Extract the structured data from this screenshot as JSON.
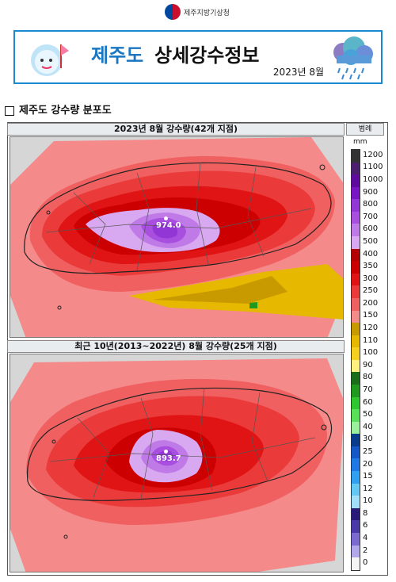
{
  "header": {
    "org_name": "제주지방기상청",
    "title_region": "제주도",
    "title_main": "상세강수정보",
    "date": "2023년 8월"
  },
  "section": {
    "title": "제주도 강수량 분포도"
  },
  "maps": [
    {
      "title": "2023년 8월 강수량(42개 지점)",
      "max_value": "974.0"
    },
    {
      "title": "최근 10년(2013~2022년) 8월 강수량(25개 지점)",
      "max_value": "893.7"
    }
  ],
  "legend": {
    "header": "범례",
    "unit": "mm",
    "levels": [
      {
        "label": "1200",
        "color": "#333333"
      },
      {
        "label": "1100",
        "color": "#4b1f6e"
      },
      {
        "label": "1000",
        "color": "#5e0a9e"
      },
      {
        "label": "900",
        "color": "#7a15c4"
      },
      {
        "label": "800",
        "color": "#9336d6"
      },
      {
        "label": "700",
        "color": "#a84fe0"
      },
      {
        "label": "600",
        "color": "#c07ae8"
      },
      {
        "label": "500",
        "color": "#d8a8f0"
      },
      {
        "label": "400",
        "color": "#b30000"
      },
      {
        "label": "350",
        "color": "#cc0000"
      },
      {
        "label": "300",
        "color": "#e01414"
      },
      {
        "label": "250",
        "color": "#ea3a3a"
      },
      {
        "label": "200",
        "color": "#f06060"
      },
      {
        "label": "150",
        "color": "#f58a8a"
      },
      {
        "label": "120",
        "color": "#c89a00"
      },
      {
        "label": "110",
        "color": "#e6b800"
      },
      {
        "label": "100",
        "color": "#f5d020"
      },
      {
        "label": "90",
        "color": "#fff080"
      },
      {
        "label": "80",
        "color": "#1a6e1a"
      },
      {
        "label": "70",
        "color": "#1f9a1f"
      },
      {
        "label": "60",
        "color": "#2ec82e"
      },
      {
        "label": "50",
        "color": "#58e058"
      },
      {
        "label": "40",
        "color": "#9cf09c"
      },
      {
        "label": "30",
        "color": "#0a3c8c"
      },
      {
        "label": "25",
        "color": "#1458c8"
      },
      {
        "label": "20",
        "color": "#1e78e6"
      },
      {
        "label": "15",
        "color": "#32a0f0"
      },
      {
        "label": "12",
        "color": "#64c8f5"
      },
      {
        "label": "10",
        "color": "#a0e0fa"
      },
      {
        "label": "8",
        "color": "#2a1a7a"
      },
      {
        "label": "6",
        "color": "#4a3aa8"
      },
      {
        "label": "4",
        "color": "#7a6ad2"
      },
      {
        "label": "2",
        "color": "#b0a8ea"
      },
      {
        "label": "0",
        "color": "#f4f4f4"
      }
    ]
  }
}
